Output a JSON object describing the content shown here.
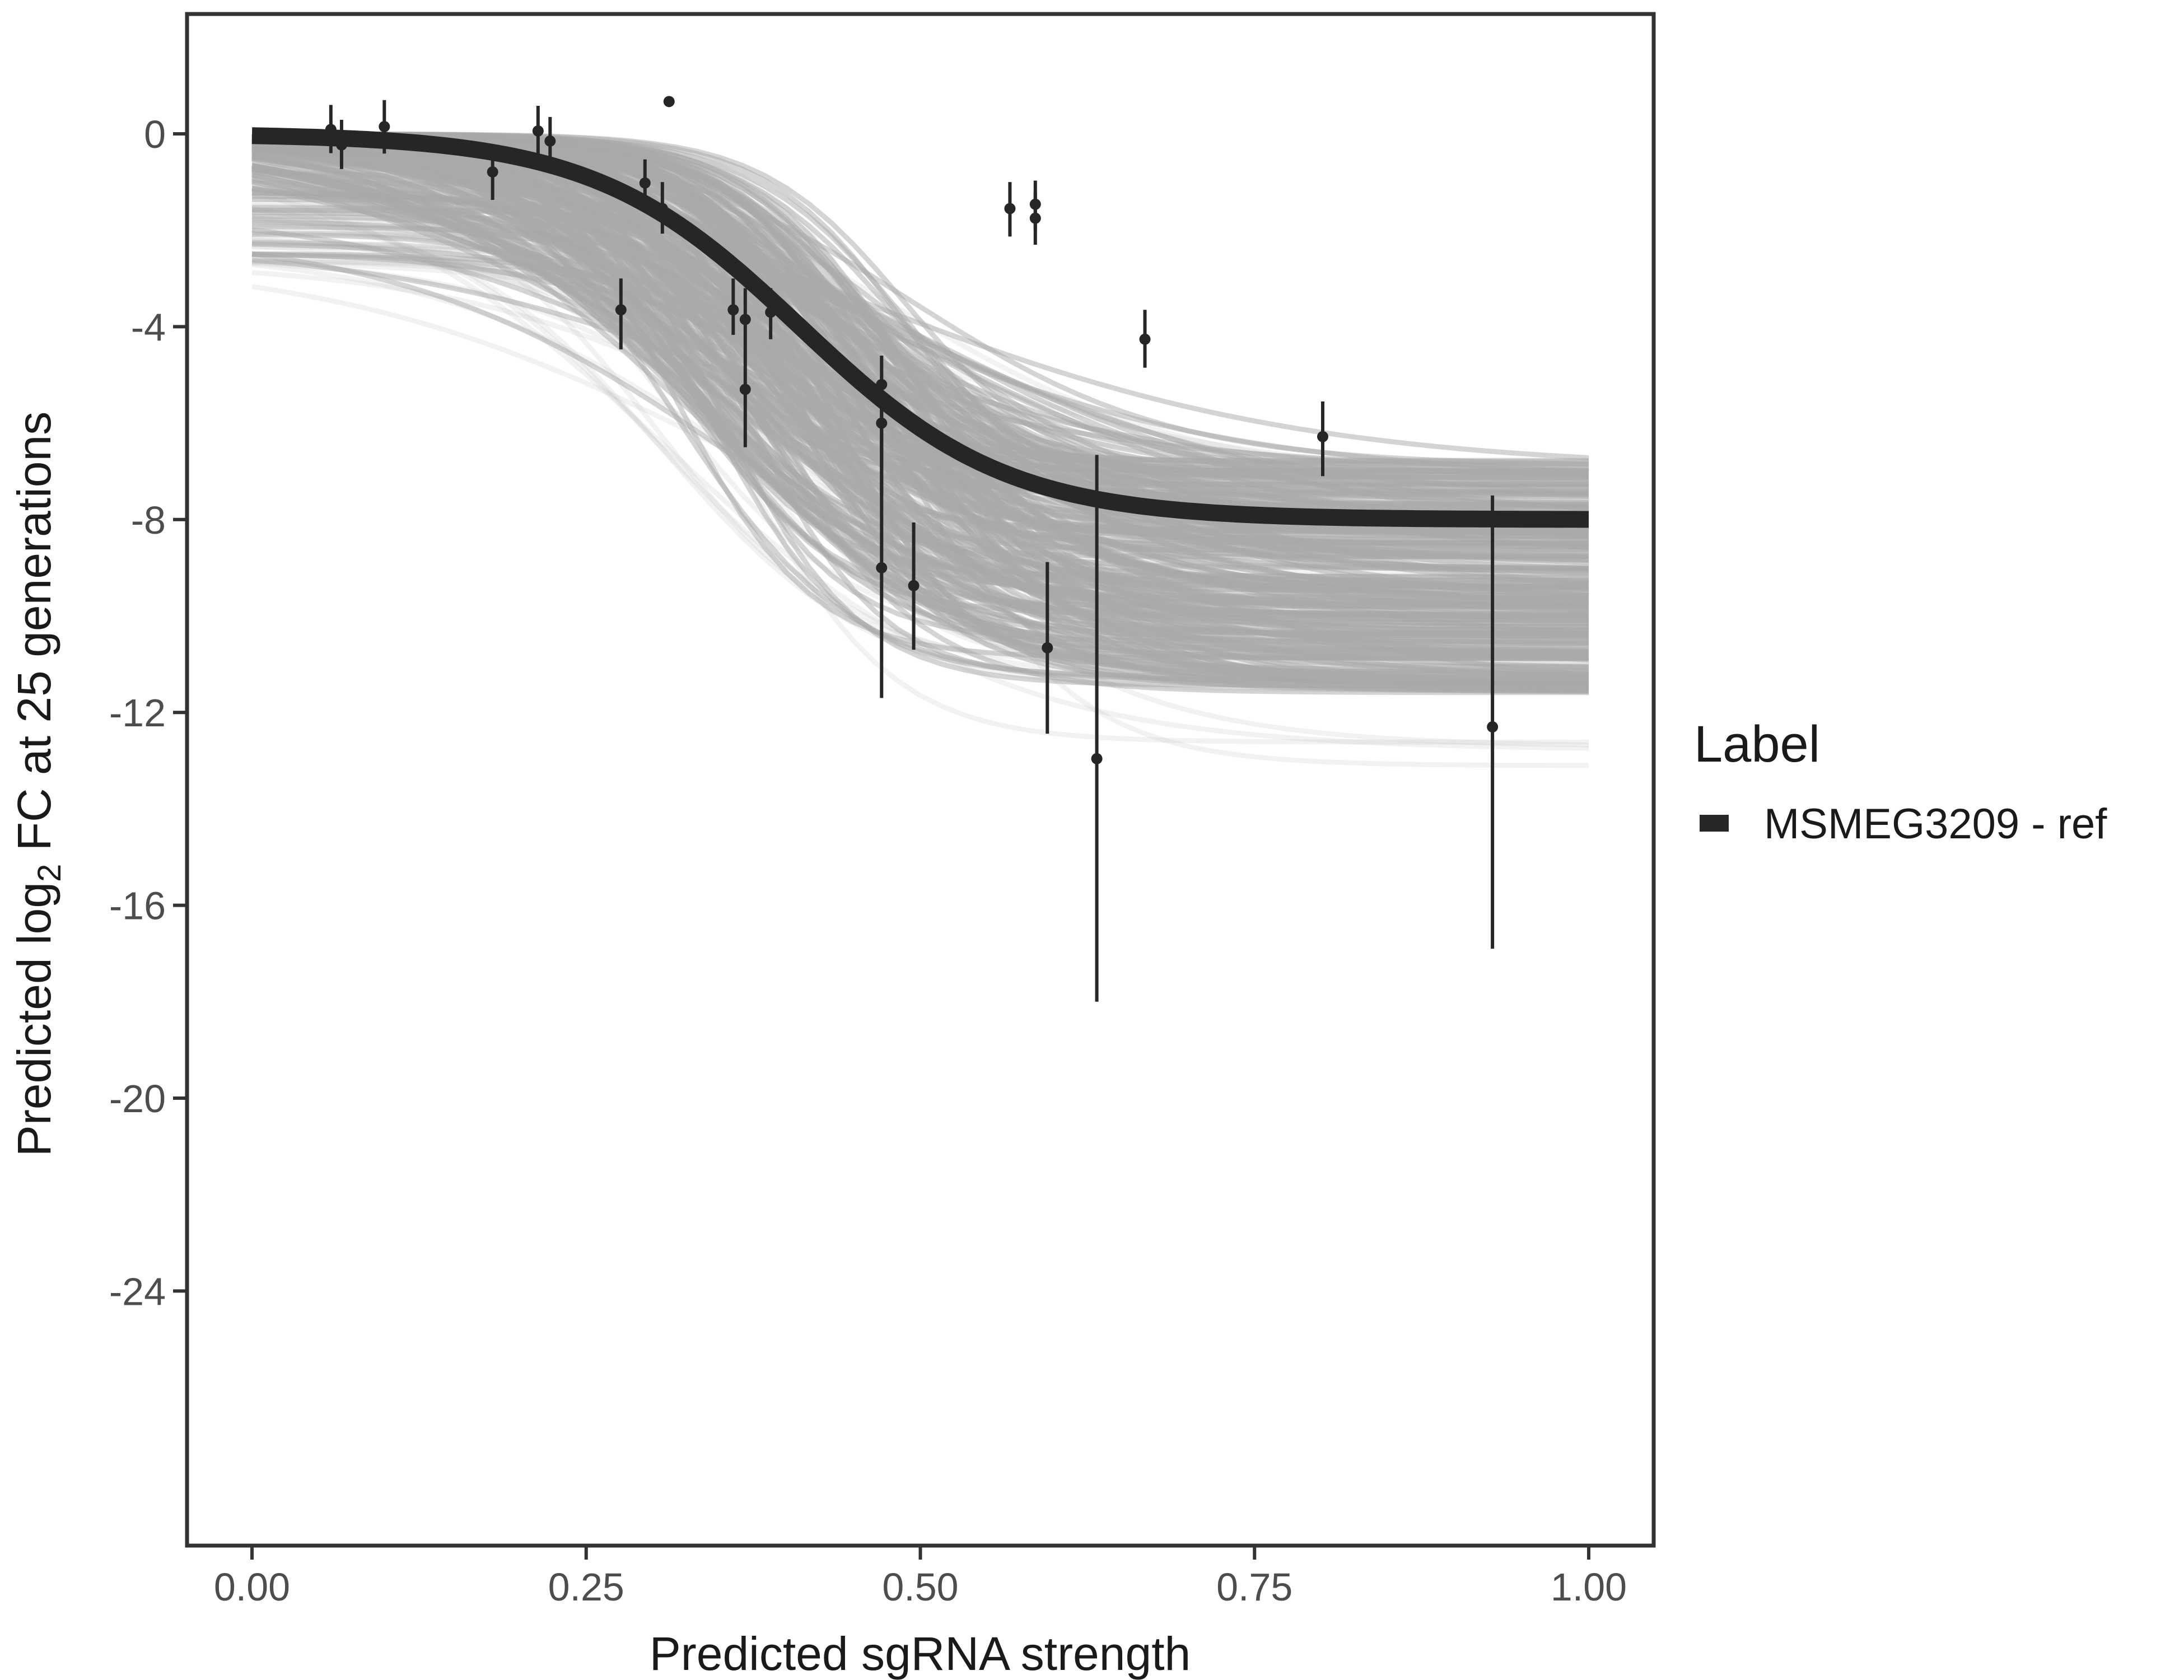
{
  "chart_data": {
    "type": "line",
    "title": "",
    "xlabel": "Predicted sgRNA strength",
    "ylabel_parts": [
      "Predicted  log",
      "2",
      " FC at 25 generations"
    ],
    "xlim": [
      -0.1,
      1.1
    ],
    "ylim": [
      -29.3,
      2.48
    ],
    "x_ticks": [
      0.0,
      0.25,
      0.5,
      0.75,
      1.0
    ],
    "x_tick_labels": [
      "0.00",
      "0.25",
      "0.50",
      "0.75",
      "1.00"
    ],
    "y_ticks": [
      0,
      -4,
      -8,
      -12,
      -16,
      -20,
      -24
    ],
    "y_tick_labels": [
      "0",
      "-4",
      "-8",
      "-12",
      "-16",
      "-20",
      "-24"
    ],
    "grid": false,
    "legend": {
      "title": "Label",
      "position": "right",
      "entries": [
        {
          "label": "MSMEG3209 - ref",
          "color": "#262626"
        }
      ]
    },
    "fit_curve": {
      "model": "logistic",
      "lower": -8.0,
      "k": 13,
      "x0": 0.41,
      "color": "#262626"
    },
    "posterior_draws": {
      "count": 300,
      "color": "#aaaaaa",
      "lower_range": [
        -14.5,
        -4.8
      ],
      "k_range": [
        6,
        20
      ],
      "x0_range": [
        0.3,
        0.5
      ],
      "offset_range": [
        -2.7,
        0
      ]
    },
    "points": [
      {
        "x": 0.059,
        "y": 0.09,
        "hi": 0.6,
        "lo": -0.4
      },
      {
        "x": 0.067,
        "y": -0.23,
        "hi": 0.29,
        "lo": -0.73
      },
      {
        "x": 0.099,
        "y": 0.15,
        "hi": 0.7,
        "lo": -0.41
      },
      {
        "x": 0.18,
        "y": -0.79,
        "hi": -0.29,
        "lo": -1.37
      },
      {
        "x": 0.214,
        "y": 0.06,
        "hi": 0.58,
        "lo": -0.44
      },
      {
        "x": 0.223,
        "y": -0.15,
        "hi": 0.35,
        "lo": -0.64
      },
      {
        "x": 0.276,
        "y": -3.65,
        "hi": -3.0,
        "lo": -4.47
      },
      {
        "x": 0.294,
        "y": -1.02,
        "hi": -0.53,
        "lo": -1.6
      },
      {
        "x": 0.307,
        "y": -1.55,
        "hi": -1.0,
        "lo": -2.07
      },
      {
        "x": 0.312,
        "y": 0.67,
        "hi": null,
        "lo": null
      },
      {
        "x": 0.36,
        "y": -3.65,
        "hi": -3.0,
        "lo": -4.17
      },
      {
        "x": 0.369,
        "y": -3.85,
        "hi": -3.2,
        "lo": -4.5
      },
      {
        "x": 0.369,
        "y": -5.3,
        "hi": -4.5,
        "lo": -6.5
      },
      {
        "x": 0.388,
        "y": -3.7,
        "hi": -3.2,
        "lo": -4.26
      },
      {
        "x": 0.471,
        "y": -5.2,
        "hi": -4.6,
        "lo": -6.6
      },
      {
        "x": 0.471,
        "y": -6.0,
        "hi": -5.2,
        "lo": -7.5
      },
      {
        "x": 0.471,
        "y": -9.0,
        "hi": -6.3,
        "lo": -11.7
      },
      {
        "x": 0.495,
        "y": -9.37,
        "hi": -8.06,
        "lo": -10.7
      },
      {
        "x": 0.567,
        "y": -1.55,
        "hi": -1.0,
        "lo": -2.13
      },
      {
        "x": 0.586,
        "y": -1.46,
        "hi": -0.97,
        "lo": -2.0
      },
      {
        "x": 0.586,
        "y": -1.75,
        "hi": -1.2,
        "lo": -2.3
      },
      {
        "x": 0.595,
        "y": -10.66,
        "hi": -8.88,
        "lo": -12.44
      },
      {
        "x": 0.632,
        "y": -12.96,
        "hi": -6.66,
        "lo": -18.0
      },
      {
        "x": 0.668,
        "y": -4.26,
        "hi": -3.65,
        "lo": -4.85
      },
      {
        "x": 0.801,
        "y": -6.28,
        "hi": -5.55,
        "lo": -7.1
      },
      {
        "x": 0.928,
        "y": -12.3,
        "hi": -7.5,
        "lo": -16.9
      }
    ]
  }
}
